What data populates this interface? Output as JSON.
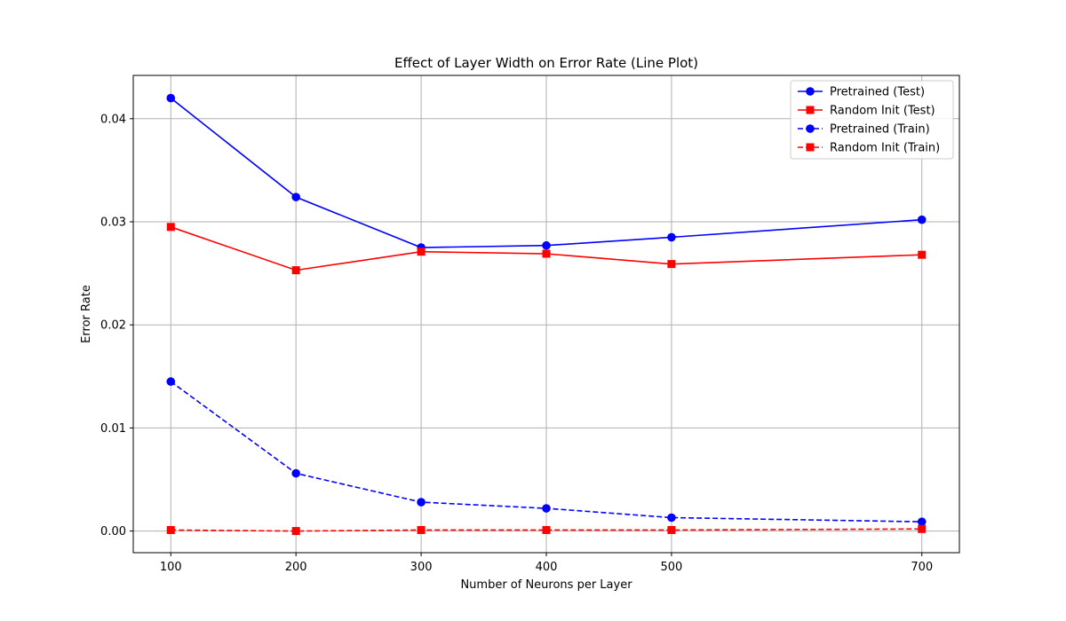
{
  "chart_data": {
    "type": "line",
    "title": "Effect of Layer Width on Error Rate (Line Plot)",
    "xlabel": "Number of Neurons per Layer",
    "ylabel": "Error Rate",
    "x": [
      100,
      200,
      300,
      400,
      500,
      700
    ],
    "xlim": [
      70,
      730
    ],
    "ylim": [
      -0.0021,
      0.0442
    ],
    "xticks": [
      100,
      200,
      300,
      400,
      500,
      700
    ],
    "yticks": [
      0.0,
      0.01,
      0.02,
      0.03,
      0.04
    ],
    "ytick_labels": [
      "0.00",
      "0.01",
      "0.02",
      "0.03",
      "0.04"
    ],
    "grid": true,
    "legend_position": "top-right",
    "series": [
      {
        "name": "Pretrained (Test)",
        "color": "#0000ff",
        "marker": "circle",
        "linestyle": "solid",
        "values": [
          0.042,
          0.0324,
          0.0275,
          0.0277,
          0.0285,
          0.0302
        ]
      },
      {
        "name": "Random Init (Test)",
        "color": "#ff0000",
        "marker": "square",
        "linestyle": "solid",
        "values": [
          0.0295,
          0.0253,
          0.0271,
          0.0269,
          0.0259,
          0.0268
        ]
      },
      {
        "name": "Pretrained (Train)",
        "color": "#0000ff",
        "marker": "circle",
        "linestyle": "dashed",
        "values": [
          0.0145,
          0.0056,
          0.0028,
          0.0022,
          0.0013,
          0.0009
        ]
      },
      {
        "name": "Random Init (Train)",
        "color": "#ff0000",
        "marker": "square",
        "linestyle": "dashed",
        "values": [
          0.0001,
          0.0,
          0.0001,
          0.0001,
          0.0001,
          0.0002
        ]
      }
    ]
  }
}
